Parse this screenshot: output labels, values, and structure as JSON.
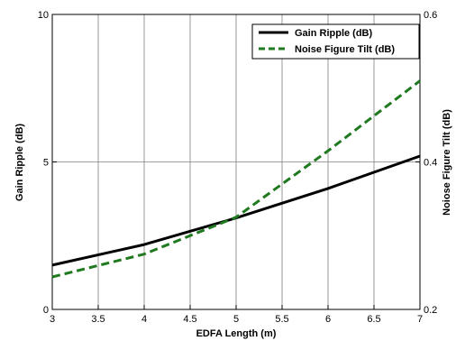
{
  "chart_data": {
    "type": "line",
    "xlabel": "EDFA Length (m)",
    "ylabel_left": "Gain Ripple (dB)",
    "ylabel_right": "Noiose Figure Tilt (dB)",
    "xlim": [
      3,
      7
    ],
    "ylim_left": [
      0,
      10
    ],
    "ylim_right": [
      0.2,
      0.6
    ],
    "xticks": [
      "3",
      "3.5",
      "4",
      "4.5",
      "5",
      "5.5",
      "6",
      "6.5",
      "7"
    ],
    "yticks_left": [
      "0",
      "5",
      "10"
    ],
    "yticks_right": [
      "0.2",
      "0.4",
      "0.6"
    ],
    "grid": true,
    "legend_position": "top-right",
    "series": [
      {
        "name": "Gain Ripple (dB)",
        "axis": "left",
        "color": "#000000",
        "style": "solid",
        "x": [
          3,
          4,
          5,
          6,
          7
        ],
        "y": [
          1.5,
          2.2,
          3.1,
          4.1,
          5.2
        ]
      },
      {
        "name": "Noise Figure Tilt (dB)",
        "axis": "right",
        "color": "#1f7a1f",
        "style": "dashed",
        "x": [
          3,
          4,
          5,
          6,
          7
        ],
        "y": [
          0.244,
          0.275,
          0.325,
          0.415,
          0.51
        ]
      }
    ]
  }
}
